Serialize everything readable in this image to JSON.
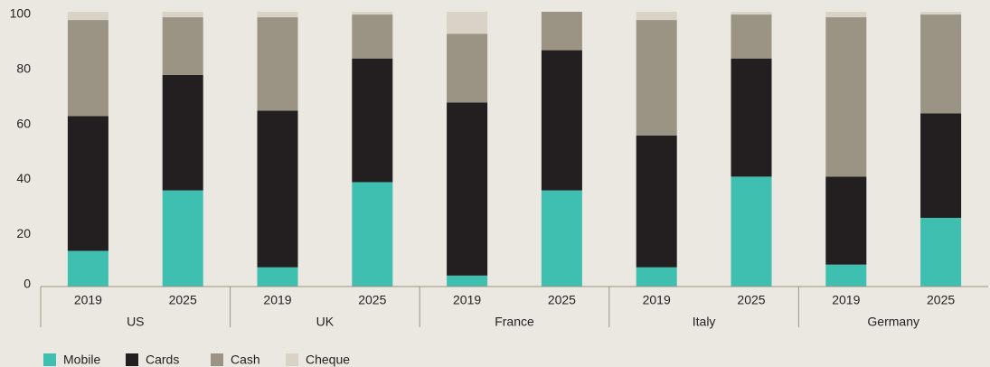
{
  "chart_data": {
    "type": "stacked_bar",
    "categories": [
      "2019",
      "2025",
      "2019",
      "2025",
      "2019",
      "2025",
      "2019",
      "2025",
      "2019",
      "2025"
    ],
    "groups": [
      "US",
      "UK",
      "France",
      "Italy",
      "Germany"
    ],
    "series": [
      {
        "name": "Mobile",
        "color": "#3fbfb0",
        "values": [
          13,
          35,
          7,
          38,
          4,
          35,
          7,
          40,
          8,
          25
        ]
      },
      {
        "name": "Cards",
        "color": "#231f20",
        "values": [
          49,
          42,
          57,
          45,
          63,
          51,
          48,
          43,
          32,
          38
        ]
      },
      {
        "name": "Cash",
        "color": "#9b9484",
        "values": [
          35,
          21,
          34,
          16,
          25,
          14,
          42,
          16,
          58,
          36
        ]
      },
      {
        "name": "Cheque",
        "color": "#d9d2c6",
        "values": [
          3,
          2,
          2,
          1,
          8,
          0,
          3,
          1,
          2,
          1
        ]
      }
    ],
    "ylim": [
      0,
      100
    ],
    "yticks": [
      0,
      20,
      40,
      60,
      80,
      100
    ],
    "grid": false,
    "legend": "bottom-left"
  }
}
